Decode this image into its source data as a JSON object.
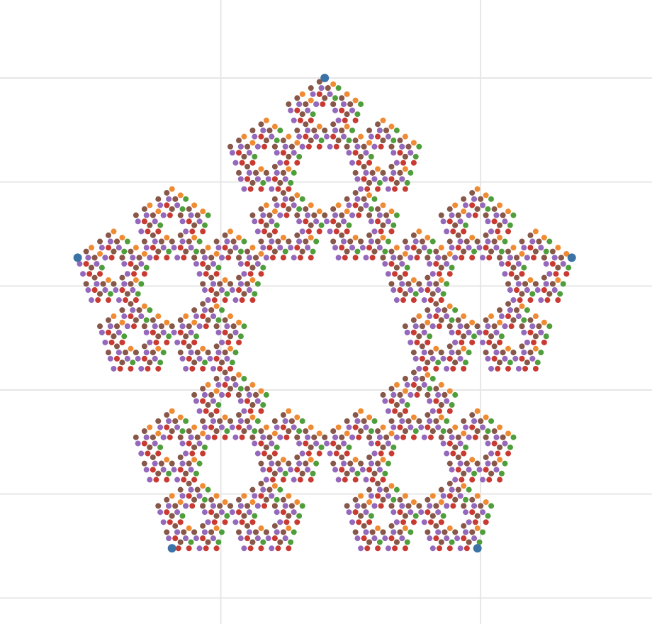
{
  "chart_data": {
    "type": "scatter",
    "title": "",
    "xlabel": "",
    "ylabel": "",
    "xlim": [
      -1.25,
      1.26
    ],
    "ylim": [
      -1.1,
      1.3
    ],
    "grid": true,
    "x_grid": [
      -0.4,
      0.6
    ],
    "y_grid": [
      -1.0,
      -0.6,
      -0.2,
      0.2,
      0.6,
      1.0
    ],
    "legend": "none",
    "point_radius": 4,
    "anchor_radius": 6,
    "anchor_color": "#3b73a6",
    "anchors": [
      {
        "x": 0.0,
        "y": 1.0
      },
      {
        "x": 0.951,
        "y": 0.309
      },
      {
        "x": 0.588,
        "y": -0.809
      },
      {
        "x": -0.588,
        "y": -0.809
      },
      {
        "x": -0.951,
        "y": 0.309
      }
    ],
    "generator": {
      "ratio": 0.381966,
      "levels": 4,
      "branches": 4,
      "clusters": [
        {
          "name": "orange",
          "anchor": 0,
          "color": "#ef8b33",
          "vertices": [
            0,
            1,
            2,
            3
          ]
        },
        {
          "name": "green",
          "anchor": 1,
          "color": "#4f9e3c",
          "vertices": [
            1,
            2,
            3,
            4
          ]
        },
        {
          "name": "red",
          "anchor": 2,
          "color": "#c93a32",
          "vertices": [
            2,
            3,
            4,
            0
          ]
        },
        {
          "name": "purple",
          "anchor": 3,
          "color": "#9468bc",
          "vertices": [
            3,
            4,
            0,
            1
          ]
        },
        {
          "name": "brown",
          "anchor": 4,
          "color": "#875749",
          "vertices": [
            4,
            0,
            1,
            2
          ]
        }
      ]
    }
  }
}
